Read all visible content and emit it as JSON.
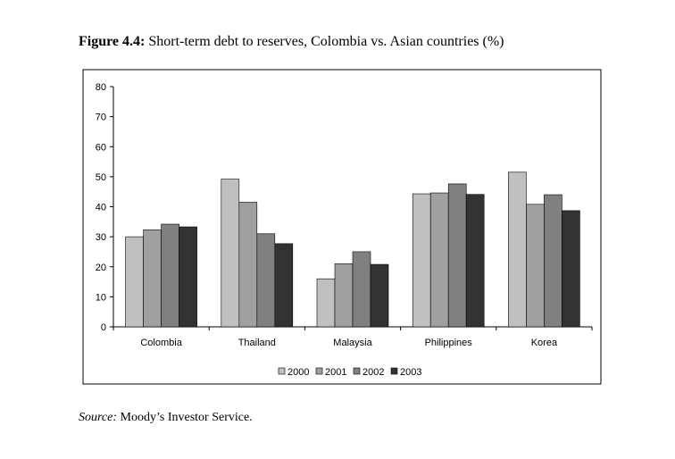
{
  "chart_data": {
    "type": "bar",
    "figure_label": "Figure 4.4:",
    "title": "Short-term debt to reserves, Colombia vs. Asian countries (%)",
    "categories": [
      "Colombia",
      "Thailand",
      "Malaysia",
      "Philippines",
      "Korea"
    ],
    "series": [
      {
        "name": "2000",
        "color": "#c0c0c0",
        "values": [
          30,
          49.2,
          16,
          44.3,
          51.5
        ]
      },
      {
        "name": "2001",
        "color": "#a0a0a0",
        "values": [
          32.3,
          41.5,
          21,
          44.6,
          40.8
        ]
      },
      {
        "name": "2002",
        "color": "#808080",
        "values": [
          34.2,
          31,
          25,
          47.6,
          44
        ]
      },
      {
        "name": "2003",
        "color": "#333333",
        "values": [
          33.3,
          27.7,
          20.8,
          44.1,
          38.7
        ]
      }
    ],
    "ylim": [
      0,
      80
    ],
    "yticks": [
      0,
      10,
      20,
      30,
      40,
      50,
      60,
      70,
      80
    ],
    "grid": false,
    "legend": "bottom",
    "source_label": "Source:",
    "source": "Moody’s Investor Service."
  }
}
